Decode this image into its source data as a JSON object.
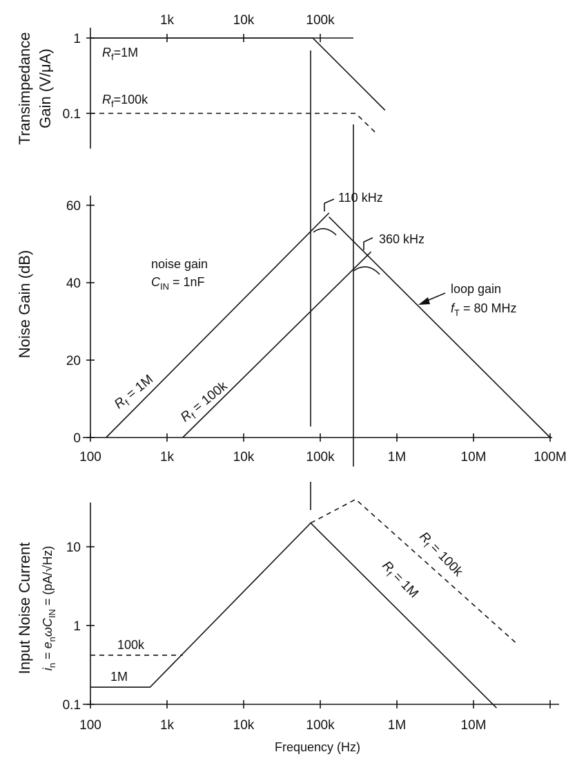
{
  "chart_data": [
    {
      "id": "transimpedance",
      "type": "line",
      "x_scale": "log",
      "y_scale": "log",
      "ylabel": [
        "Transimpedance",
        "Gain (V/μA)"
      ],
      "x_ticks": [
        {
          "v": 1000,
          "label": "1k"
        },
        {
          "v": 10000,
          "label": "10k"
        },
        {
          "v": 100000,
          "label": "100k"
        }
      ],
      "y_ticks": [
        {
          "v": 1,
          "label": "1"
        },
        {
          "v": 0.1,
          "label": "0.1"
        }
      ],
      "ylim": [
        0.03,
        1.1
      ],
      "series": [
        {
          "name": "Rf=1M",
          "style": "solid",
          "points": [
            [
              100,
              1
            ],
            [
              80000,
              1
            ],
            [
              700000,
              0.11
            ]
          ]
        },
        {
          "name": "Rf=100k",
          "style": "dashed",
          "points": [
            [
              100,
              0.1
            ],
            [
              290000,
              0.1
            ],
            [
              530000,
              0.055
            ]
          ]
        }
      ],
      "annotations": [
        {
          "label": "Rf=1M",
          "base": "R",
          "sub": "f",
          "rest": "=1M"
        },
        {
          "label": "Rf=100k",
          "base": "R",
          "sub": "f",
          "rest": "=100k"
        }
      ]
    },
    {
      "id": "noise_gain",
      "type": "line",
      "x_scale": "log",
      "y_scale": "linear",
      "ylabel": "Noise Gain (dB)",
      "ylim": [
        0,
        60
      ],
      "x_ticks": [
        {
          "v": 100,
          "label": "100"
        },
        {
          "v": 1000,
          "label": "1k"
        },
        {
          "v": 10000,
          "label": "10k"
        },
        {
          "v": 100000,
          "label": "100k"
        },
        {
          "v": 1000000,
          "label": "1M"
        },
        {
          "v": 10000000,
          "label": "10M"
        },
        {
          "v": 100000000,
          "label": "100M"
        }
      ],
      "y_ticks": [
        {
          "v": 0,
          "label": "0"
        },
        {
          "v": 20,
          "label": "20"
        },
        {
          "v": 40,
          "label": "40"
        },
        {
          "v": 60,
          "label": "60"
        }
      ],
      "series": [
        {
          "name": "Rf = 1M",
          "style": "solid",
          "points": [
            [
              160,
              0
            ],
            [
              130000,
              58
            ]
          ]
        },
        {
          "name": "Rf = 100k",
          "style": "solid",
          "points": [
            [
              1600,
              0
            ],
            [
              460000,
              48
            ]
          ]
        },
        {
          "name": "loop gain",
          "style": "solid",
          "points": [
            [
              130000,
              57
            ],
            [
              100000000,
              0
            ]
          ]
        }
      ],
      "peaks": [
        {
          "f_khz": 110,
          "label": "110 kHz"
        },
        {
          "f_khz": 360,
          "label": "360 kHz"
        }
      ],
      "labels": {
        "rf1m": {
          "base": "R",
          "sub": "f",
          "rest": " = 1M"
        },
        "rf100k": {
          "base": "R",
          "sub": "f",
          "rest": " = 100k"
        },
        "noise_gain": "noise gain",
        "cin": {
          "base": "C",
          "sub": "IN",
          "rest": " = 1nF"
        },
        "loop_gain": "loop gain",
        "ft": {
          "base": "f",
          "sub": "T",
          "rest": " = 80 MHz"
        }
      }
    },
    {
      "id": "input_noise_current",
      "type": "line",
      "x_scale": "log",
      "y_scale": "log",
      "ylabel_line1": "Input Noise Current",
      "ylabel_line2": {
        "i": "i",
        "i_sub": "n",
        "eq": " = ",
        "e": "e",
        "e_sub": "n",
        "omega": "ω",
        "c": "C",
        "c_sub": "IN",
        "units": "(pA/√Hz)"
      },
      "xlabel": "Frequency (Hz)",
      "x_ticks": [
        {
          "v": 100,
          "label": "100"
        },
        {
          "v": 1000,
          "label": "1k"
        },
        {
          "v": 10000,
          "label": "10k"
        },
        {
          "v": 100000,
          "label": "100k"
        },
        {
          "v": 1000000,
          "label": "1M"
        },
        {
          "v": 10000000,
          "label": "10M"
        }
      ],
      "y_ticks": [
        {
          "v": 0.1,
          "label": "0.1"
        },
        {
          "v": 1,
          "label": "1"
        },
        {
          "v": 10,
          "label": "10"
        }
      ],
      "ylim": [
        0.1,
        40
      ],
      "series": [
        {
          "name": "Rf = 1M",
          "style": "solid",
          "points": [
            [
              100,
              0.165
            ],
            [
              600,
              0.165
            ],
            [
              75000,
              20
            ],
            [
              20000000,
              0.09
            ]
          ]
        },
        {
          "name": "Rf = 100k",
          "style": "dashed",
          "points": [
            [
              100,
              0.42
            ],
            [
              1600,
              0.42
            ]
          ]
        },
        {
          "name": "Rf = 100k",
          "style": "dashed",
          "points": [
            [
              75000,
              20
            ],
            [
              290000,
              40
            ],
            [
              36000000,
              0.6
            ]
          ]
        }
      ],
      "labels": {
        "l100k": "100k",
        "l1m": "1M",
        "rf100k": {
          "base": "R",
          "sub": "f",
          "rest": " = 100k"
        },
        "rf1m": {
          "base": "R",
          "sub": "f",
          "rest": " = 1M"
        }
      }
    }
  ]
}
